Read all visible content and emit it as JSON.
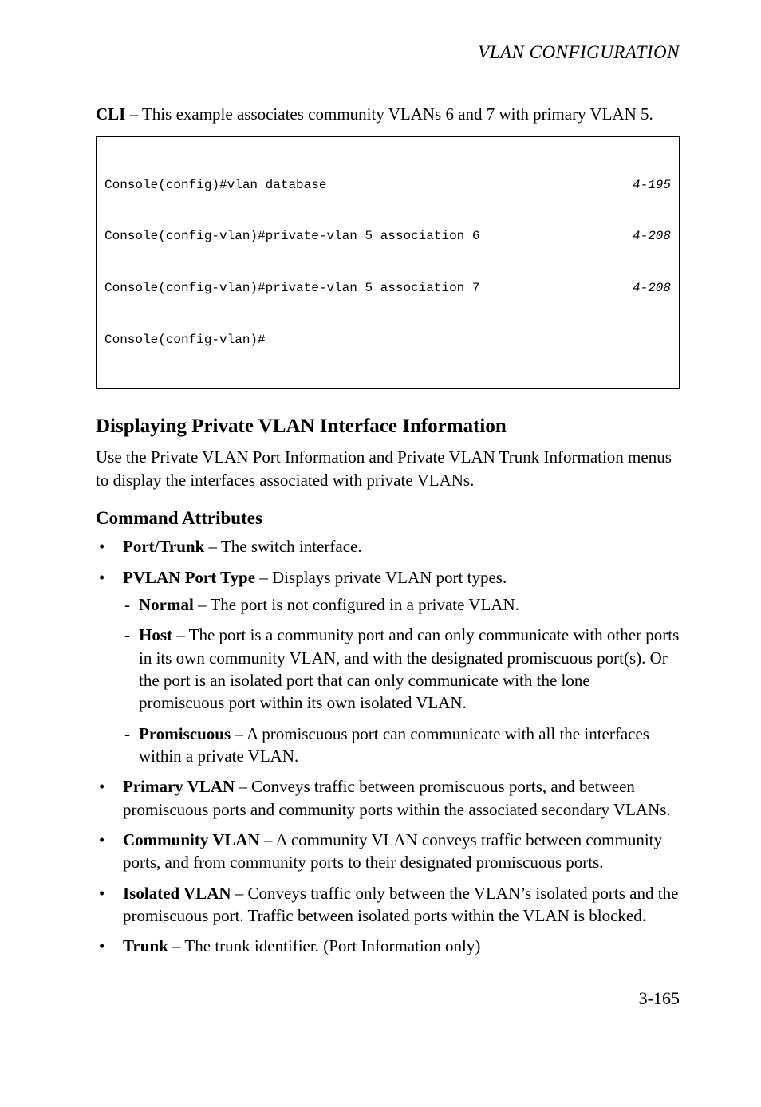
{
  "running_head": "VLAN CONFIGURATION",
  "intro": {
    "prefix": "CLI",
    "rest": " – This example associates community VLANs 6 and 7 with primary VLAN 5."
  },
  "code": {
    "lines": [
      {
        "left": "Console(config)#vlan database",
        "right": "4-195"
      },
      {
        "left": "Console(config-vlan)#private-vlan 5 association 6",
        "right": "4-208"
      },
      {
        "left": "Console(config-vlan)#private-vlan 5 association 7",
        "right": "4-208"
      },
      {
        "left": "Console(config-vlan)#",
        "right": ""
      }
    ]
  },
  "section": {
    "title": "Displaying Private VLAN Interface Information",
    "desc": "Use the Private VLAN Port Information and Private VLAN Trunk Information menus to display the interfaces associated with private VLANs."
  },
  "attr_heading": "Command Attributes",
  "bullets": {
    "b1": {
      "term": "Port/Trunk",
      "rest": " – The switch interface."
    },
    "b2": {
      "term": "PVLAN Port Type",
      "rest": " – Displays private VLAN port types.",
      "sub": {
        "s1": {
          "term": "Normal",
          "rest": " – The port is not configured in a private VLAN."
        },
        "s2": {
          "term": "Host",
          "rest": " – The port is a community port and can only communicate with other ports in its own community VLAN, and with the designated promiscuous port(s). Or the port is an isolated port that can only communicate with the lone promiscuous port within its own isolated VLAN."
        },
        "s3": {
          "term": "Promiscuous",
          "rest": " – A promiscuous port can communicate with all the interfaces within a private VLAN."
        }
      }
    },
    "b3": {
      "term": "Primary VLAN",
      "rest": " – Conveys traffic between promiscuous ports, and between promiscuous ports and community ports within the associated secondary VLANs."
    },
    "b4": {
      "term": "Community VLAN",
      "rest": " – A community VLAN conveys traffic between community ports, and from community ports to their designated promiscuous ports."
    },
    "b5": {
      "term": "Isolated VLAN",
      "rest": " –  Conveys traffic only between the VLAN’s isolated ports and the promiscuous port. Traffic between isolated ports within the VLAN is blocked."
    },
    "b6": {
      "term": "Trunk",
      "rest": " – The trunk identifier. (Port Information only)"
    }
  },
  "page_number": "3-165"
}
